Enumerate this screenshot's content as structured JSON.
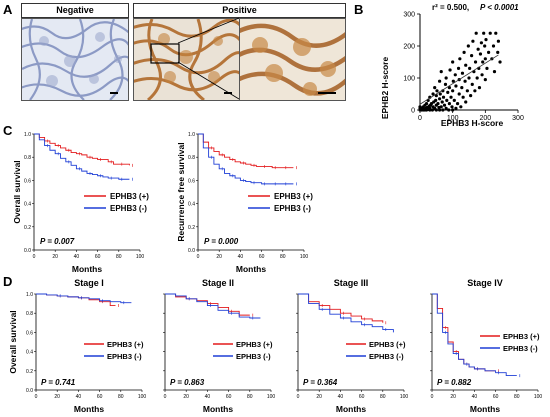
{
  "panels": {
    "A": "A",
    "B": "B",
    "C": "C",
    "D": "D"
  },
  "panelA": {
    "negative_label": "Negative",
    "positive_label": "Positive"
  },
  "panelB": {
    "stats_r2": "r² = 0.500,",
    "stats_p": "P < 0.0001",
    "ylabel": "EPHB2 H-score",
    "xlabel": "EPHB3 H-score",
    "xticks": [
      "0",
      "100",
      "200",
      "300"
    ],
    "yticks": [
      "0",
      "100",
      "200",
      "300"
    ]
  },
  "panelC": {
    "os": {
      "ylabel": "Overall survival",
      "p_text": "P = 0.007"
    },
    "rfs": {
      "ylabel": "Recurrence free survival",
      "p_text": "P = 0.000"
    },
    "xlabel": "Months",
    "legend": [
      "EPHB3 (+)",
      "EPHB3 (-)"
    ]
  },
  "panelD": {
    "ylabel": "Overall survival",
    "xlabel": "Months",
    "legend": [
      "EPHB3 (+)",
      "EPHB3 (-)"
    ],
    "stages": [
      {
        "title": "Stage I",
        "p_text": "P = 0.741"
      },
      {
        "title": "Stage II",
        "p_text": "P = 0.863"
      },
      {
        "title": "Stage III",
        "p_text": "P = 0.364"
      },
      {
        "title": "Stage IV",
        "p_text": "P = 0.882"
      }
    ]
  },
  "colors": {
    "positive": "#e31a1c",
    "negative": "#1f3fd6"
  },
  "chart_data": [
    {
      "type": "scatter",
      "panel": "B",
      "xlim": [
        0,
        300
      ],
      "ylim": [
        0,
        300
      ],
      "xticks": [
        0,
        100,
        200,
        300
      ],
      "yticks": [
        0,
        100,
        200,
        300
      ],
      "points": [
        [
          0,
          0
        ],
        [
          0,
          5
        ],
        [
          0,
          10
        ],
        [
          5,
          0
        ],
        [
          5,
          5
        ],
        [
          8,
          2
        ],
        [
          10,
          0
        ],
        [
          10,
          10
        ],
        [
          12,
          3
        ],
        [
          15,
          0
        ],
        [
          15,
          15
        ],
        [
          18,
          5
        ],
        [
          20,
          0
        ],
        [
          20,
          20
        ],
        [
          22,
          8
        ],
        [
          25,
          2
        ],
        [
          25,
          30
        ],
        [
          28,
          12
        ],
        [
          30,
          0
        ],
        [
          30,
          5
        ],
        [
          30,
          40
        ],
        [
          32,
          15
        ],
        [
          35,
          20
        ],
        [
          38,
          0
        ],
        [
          40,
          10
        ],
        [
          40,
          50
        ],
        [
          42,
          25
        ],
        [
          45,
          5
        ],
        [
          45,
          70
        ],
        [
          48,
          30
        ],
        [
          50,
          0
        ],
        [
          50,
          15
        ],
        [
          50,
          45
        ],
        [
          52,
          60
        ],
        [
          55,
          20
        ],
        [
          58,
          8
        ],
        [
          60,
          0
        ],
        [
          60,
          35
        ],
        [
          60,
          90
        ],
        [
          62,
          50
        ],
        [
          65,
          10
        ],
        [
          65,
          120
        ],
        [
          68,
          25
        ],
        [
          70,
          0
        ],
        [
          70,
          60
        ],
        [
          72,
          40
        ],
        [
          75,
          15
        ],
        [
          78,
          80
        ],
        [
          80,
          5
        ],
        [
          80,
          100
        ],
        [
          82,
          30
        ],
        [
          85,
          55
        ],
        [
          88,
          0
        ],
        [
          90,
          20
        ],
        [
          90,
          70
        ],
        [
          92,
          125
        ],
        [
          95,
          40
        ],
        [
          98,
          10
        ],
        [
          100,
          0
        ],
        [
          100,
          60
        ],
        [
          100,
          150
        ],
        [
          102,
          90
        ],
        [
          105,
          30
        ],
        [
          108,
          110
        ],
        [
          110,
          5
        ],
        [
          110,
          75
        ],
        [
          115,
          20
        ],
        [
          118,
          130
        ],
        [
          120,
          50
        ],
        [
          120,
          95
        ],
        [
          122,
          160
        ],
        [
          125,
          10
        ],
        [
          128,
          70
        ],
        [
          130,
          115
        ],
        [
          132,
          40
        ],
        [
          135,
          180
        ],
        [
          138,
          90
        ],
        [
          140,
          25
        ],
        [
          140,
          140
        ],
        [
          145,
          60
        ],
        [
          148,
          200
        ],
        [
          150,
          100
        ],
        [
          152,
          130
        ],
        [
          155,
          45
        ],
        [
          158,
          170
        ],
        [
          160,
          80
        ],
        [
          162,
          215
        ],
        [
          165,
          120
        ],
        [
          168,
          60
        ],
        [
          170,
          150
        ],
        [
          172,
          240
        ],
        [
          175,
          100
        ],
        [
          178,
          190
        ],
        [
          180,
          130
        ],
        [
          182,
          70
        ],
        [
          185,
          175
        ],
        [
          188,
          210
        ],
        [
          190,
          110
        ],
        [
          192,
          150
        ],
        [
          195,
          240
        ],
        [
          198,
          200
        ],
        [
          200,
          160
        ],
        [
          200,
          95
        ],
        [
          202,
          220
        ],
        [
          205,
          130
        ],
        [
          210,
          180
        ],
        [
          215,
          240
        ],
        [
          220,
          160
        ],
        [
          225,
          200
        ],
        [
          228,
          120
        ],
        [
          232,
          240
        ],
        [
          238,
          180
        ],
        [
          240,
          215
        ],
        [
          245,
          150
        ]
      ],
      "fit_line": {
        "x": [
          0,
          240
        ],
        "y": [
          18,
          172
        ]
      }
    },
    {
      "type": "line",
      "panel": "C-overall",
      "xlim": [
        0,
        100
      ],
      "ylim": [
        0,
        1.0
      ],
      "series": [
        {
          "name": "EPHB3 (+)",
          "x": [
            0,
            5,
            10,
            15,
            20,
            25,
            30,
            35,
            40,
            45,
            50,
            55,
            60,
            65,
            70,
            75,
            80,
            85,
            90
          ],
          "y": [
            1.0,
            0.97,
            0.94,
            0.92,
            0.9,
            0.88,
            0.86,
            0.84,
            0.83,
            0.82,
            0.8,
            0.79,
            0.78,
            0.78,
            0.76,
            0.74,
            0.74,
            0.74,
            0.73
          ]
        },
        {
          "name": "EPHB3 (-)",
          "x": [
            0,
            5,
            10,
            15,
            20,
            25,
            30,
            35,
            40,
            45,
            50,
            55,
            60,
            65,
            70,
            75,
            80,
            85,
            90
          ],
          "y": [
            1.0,
            0.95,
            0.9,
            0.86,
            0.83,
            0.79,
            0.76,
            0.73,
            0.7,
            0.68,
            0.66,
            0.65,
            0.64,
            0.63,
            0.62,
            0.62,
            0.61,
            0.61,
            0.61
          ]
        }
      ]
    },
    {
      "type": "line",
      "panel": "C-recurrence-free",
      "xlim": [
        0,
        100
      ],
      "ylim": [
        0,
        1.0
      ],
      "series": [
        {
          "name": "EPHB3 (+)",
          "x": [
            0,
            5,
            10,
            15,
            20,
            25,
            30,
            35,
            40,
            45,
            50,
            55,
            60,
            65,
            70,
            75,
            80,
            85,
            90
          ],
          "y": [
            1.0,
            0.93,
            0.88,
            0.85,
            0.82,
            0.8,
            0.78,
            0.76,
            0.75,
            0.74,
            0.73,
            0.72,
            0.72,
            0.72,
            0.71,
            0.71,
            0.71,
            0.71,
            0.71
          ]
        },
        {
          "name": "EPHB3 (-)",
          "x": [
            0,
            5,
            10,
            15,
            20,
            25,
            30,
            35,
            40,
            45,
            50,
            55,
            60,
            65,
            70,
            75,
            80,
            85,
            90
          ],
          "y": [
            1.0,
            0.88,
            0.8,
            0.74,
            0.7,
            0.66,
            0.64,
            0.62,
            0.6,
            0.59,
            0.58,
            0.58,
            0.57,
            0.57,
            0.57,
            0.57,
            0.57,
            0.57,
            0.57
          ]
        }
      ]
    },
    {
      "type": "line",
      "panel": "D-stage-I",
      "xlim": [
        0,
        100
      ],
      "ylim": [
        0,
        1.0
      ],
      "series": [
        {
          "name": "EPHB3 (+)",
          "x": [
            0,
            10,
            20,
            30,
            40,
            50,
            60,
            70,
            75
          ],
          "y": [
            1.0,
            0.99,
            0.98,
            0.97,
            0.96,
            0.94,
            0.92,
            0.88,
            0.88
          ]
        },
        {
          "name": "EPHB3 (-)",
          "x": [
            0,
            10,
            20,
            30,
            40,
            50,
            60,
            70,
            80,
            90
          ],
          "y": [
            1.0,
            0.99,
            0.98,
            0.97,
            0.96,
            0.95,
            0.93,
            0.92,
            0.91,
            0.91
          ]
        }
      ]
    },
    {
      "type": "line",
      "panel": "D-stage-II",
      "xlim": [
        0,
        100
      ],
      "ylim": [
        0,
        1.0
      ],
      "series": [
        {
          "name": "EPHB3 (+)",
          "x": [
            0,
            10,
            20,
            30,
            40,
            50,
            60,
            70,
            80
          ],
          "y": [
            1.0,
            0.97,
            0.95,
            0.93,
            0.9,
            0.86,
            0.82,
            0.78,
            0.78
          ]
        },
        {
          "name": "EPHB3 (-)",
          "x": [
            0,
            10,
            20,
            30,
            40,
            50,
            60,
            70,
            80,
            90
          ],
          "y": [
            1.0,
            0.98,
            0.95,
            0.92,
            0.88,
            0.83,
            0.8,
            0.76,
            0.75,
            0.75
          ]
        }
      ]
    },
    {
      "type": "line",
      "panel": "D-stage-III",
      "xlim": [
        0,
        100
      ],
      "ylim": [
        0,
        1.0
      ],
      "series": [
        {
          "name": "EPHB3 (+)",
          "x": [
            0,
            10,
            20,
            30,
            40,
            50,
            60,
            70,
            80
          ],
          "y": [
            1.0,
            0.92,
            0.88,
            0.84,
            0.8,
            0.77,
            0.74,
            0.72,
            0.7
          ]
        },
        {
          "name": "EPHB3 (-)",
          "x": [
            0,
            10,
            20,
            30,
            40,
            50,
            60,
            70,
            80,
            90
          ],
          "y": [
            1.0,
            0.9,
            0.84,
            0.79,
            0.75,
            0.71,
            0.68,
            0.66,
            0.63,
            0.6
          ]
        }
      ]
    },
    {
      "type": "line",
      "panel": "D-stage-IV",
      "xlim": [
        0,
        100
      ],
      "ylim": [
        0,
        1.0
      ],
      "series": [
        {
          "name": "EPHB3 (+)",
          "x": [
            0,
            5,
            10,
            15,
            20,
            25,
            30,
            35,
            40,
            50,
            60
          ],
          "y": [
            1.0,
            0.85,
            0.65,
            0.5,
            0.4,
            0.32,
            0.27,
            0.24,
            0.22,
            0.2,
            0.2
          ]
        },
        {
          "name": "EPHB3 (-)",
          "x": [
            0,
            5,
            10,
            15,
            20,
            25,
            30,
            35,
            40,
            50,
            60,
            70,
            80
          ],
          "y": [
            1.0,
            0.8,
            0.6,
            0.48,
            0.38,
            0.32,
            0.27,
            0.24,
            0.22,
            0.2,
            0.18,
            0.15,
            0.15
          ]
        }
      ]
    }
  ]
}
